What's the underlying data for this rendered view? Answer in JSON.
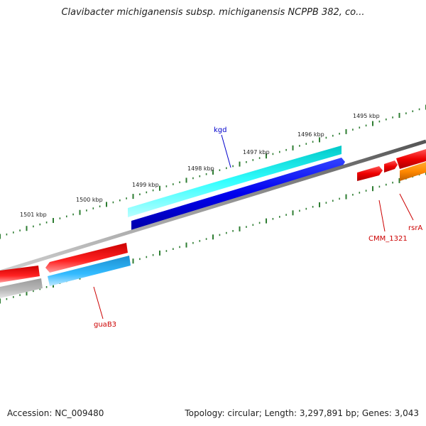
{
  "title": "Clavibacter michiganensis subsp. michiganensis NCPPB 382, co...",
  "footer": {
    "accession": "Accession: NC_009480",
    "topology": "Topology: circular; Length: 3,297,891 bp; Genes: 3,043"
  },
  "scale_labels": [
    "1495 kbp",
    "1496 kbp",
    "1497 kbp",
    "1498 kbp",
    "1499 kbp",
    "1500 kbp",
    "1501 kbp"
  ],
  "gene_labels": [
    {
      "id": "kgd",
      "text": "kgd",
      "color": "#0000cc"
    },
    {
      "id": "cmm-1321",
      "text": "CMM_1321",
      "color": "#cc0000"
    },
    {
      "id": "rsra",
      "text": "rsrA",
      "color": "#cc0000"
    },
    {
      "id": "guab3",
      "text": "guaB3",
      "color": "#cc0000"
    }
  ],
  "colors": {
    "backbone": "#808080",
    "tick": "#2e7d32",
    "forward_cds": "#00e5e5",
    "reverse_cds": "#0000dd",
    "cds_red": "#e00000",
    "cds_light_blue": "#22aaee",
    "cds_gray": "#aaaaaa",
    "cds_orange": "#ff8800"
  }
}
